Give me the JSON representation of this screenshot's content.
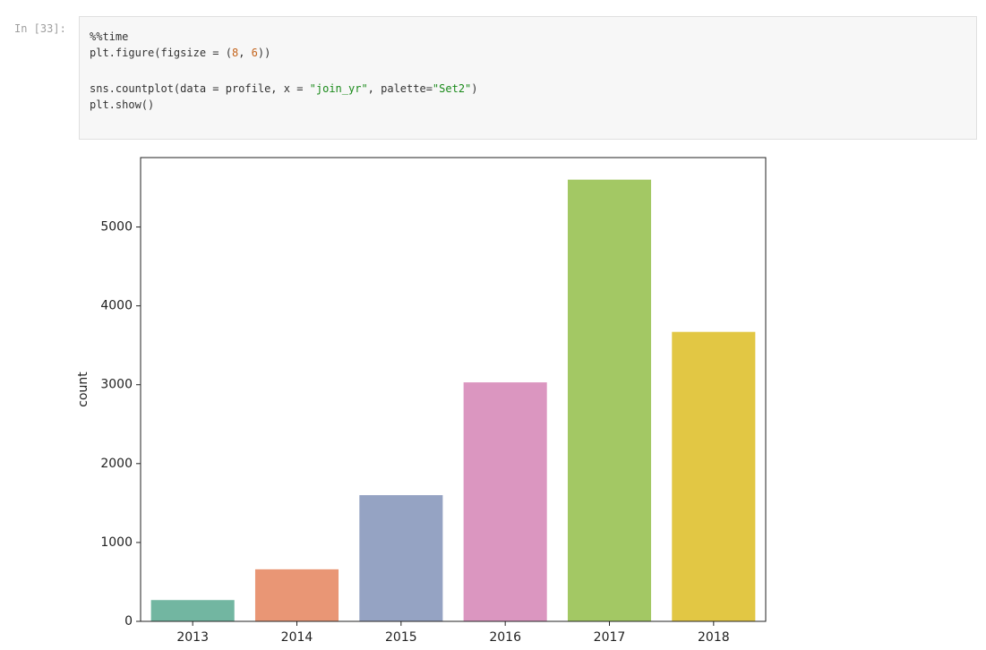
{
  "prompt": "In [33]:",
  "code": {
    "blocks": [
      [
        [
          {
            "text": "%%time",
            "color": "#333333"
          }
        ],
        [
          {
            "text": "plt.figure(figsize = (",
            "color": "#333333"
          },
          {
            "text": "8",
            "color": "#c4641c"
          },
          {
            "text": ", ",
            "color": "#333333"
          },
          {
            "text": "6",
            "color": "#c4641c"
          },
          {
            "text": "))",
            "color": "#333333"
          }
        ]
      ],
      [
        [
          {
            "text": "sns.countplot(data = profile, x = ",
            "color": "#333333"
          },
          {
            "text": "\"join_yr\"",
            "color": "#1a8a1a"
          },
          {
            "text": ", palette=",
            "color": "#333333"
          },
          {
            "text": "\"Set2\"",
            "color": "#1a8a1a"
          },
          {
            "text": ")",
            "color": "#333333"
          }
        ],
        [
          {
            "text": "plt.show()",
            "color": "#333333"
          }
        ]
      ]
    ]
  },
  "chart_data": {
    "type": "bar",
    "y_label": "count",
    "categories": [
      "2013",
      "2014",
      "2015",
      "2016",
      "2017",
      "2018"
    ],
    "values": [
      270,
      660,
      1600,
      3030,
      5600,
      3670
    ],
    "colors": [
      "#72b6a1",
      "#e99675",
      "#95a3c3",
      "#db96c0",
      "#a3c864",
      "#e2c744"
    ],
    "ylim": [
      0,
      5880
    ],
    "yticks": [
      0,
      1000,
      2000,
      3000,
      4000,
      5000
    ],
    "grid": false
  }
}
